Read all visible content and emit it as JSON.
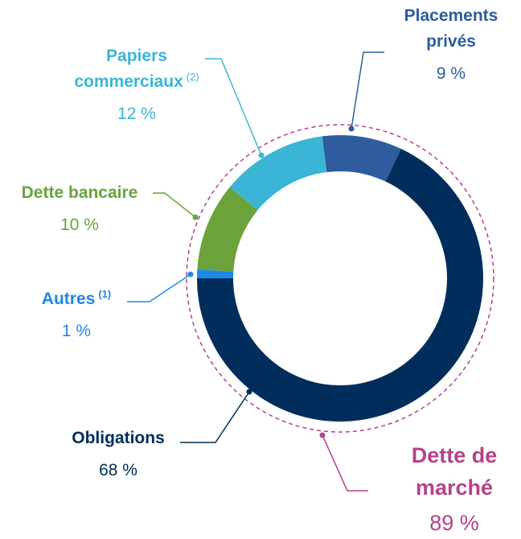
{
  "chart_data": {
    "type": "donut",
    "segments": [
      {
        "name": "Placements privés",
        "value": 9,
        "value_label": "9 %",
        "color": "#2e5c9e"
      },
      {
        "name": "Obligations",
        "value": 68,
        "value_label": "68 %",
        "color": "#002d5c"
      },
      {
        "name": "Autres",
        "sup": "(1)",
        "value": 1,
        "value_label": "1 %",
        "color": "#1e88e5"
      },
      {
        "name": "Dette bancaire",
        "value": 10,
        "value_label": "10 %",
        "color": "#6ba33a"
      },
      {
        "name": "Papiers commerciaux",
        "sup": "(2)",
        "value": 12,
        "value_label": "12 %",
        "color": "#3bb5d6"
      }
    ],
    "group": {
      "name": "Dette de marché",
      "value": 89,
      "value_label": "89 %",
      "color": "#b5418a"
    }
  }
}
